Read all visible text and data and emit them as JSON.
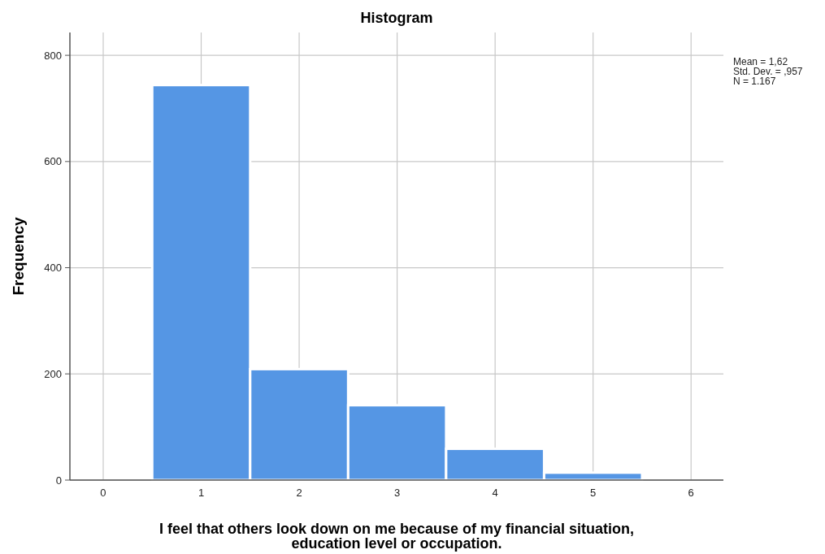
{
  "chart_data": {
    "type": "histogram",
    "title": "Histogram",
    "xlabel": "I feel that others look down on me because of my financial situation, education level or occupation.",
    "ylabel": "Frequency",
    "bins": [
      0.5,
      1.5,
      2.5,
      3.5,
      4.5,
      5.5
    ],
    "values": [
      744,
      209,
      141,
      59,
      14
    ],
    "color": "#5596e4",
    "xlim": [
      -0.34,
      6.33
    ],
    "xticks": [
      0,
      1,
      2,
      3,
      4,
      5,
      6
    ],
    "ylim": [
      0,
      843
    ],
    "yticks": [
      0,
      200,
      400,
      600,
      800
    ],
    "grid": true,
    "annotations": [
      "Mean = 1,62",
      "Std. Dev. = ,957",
      "N = 1.167"
    ]
  }
}
